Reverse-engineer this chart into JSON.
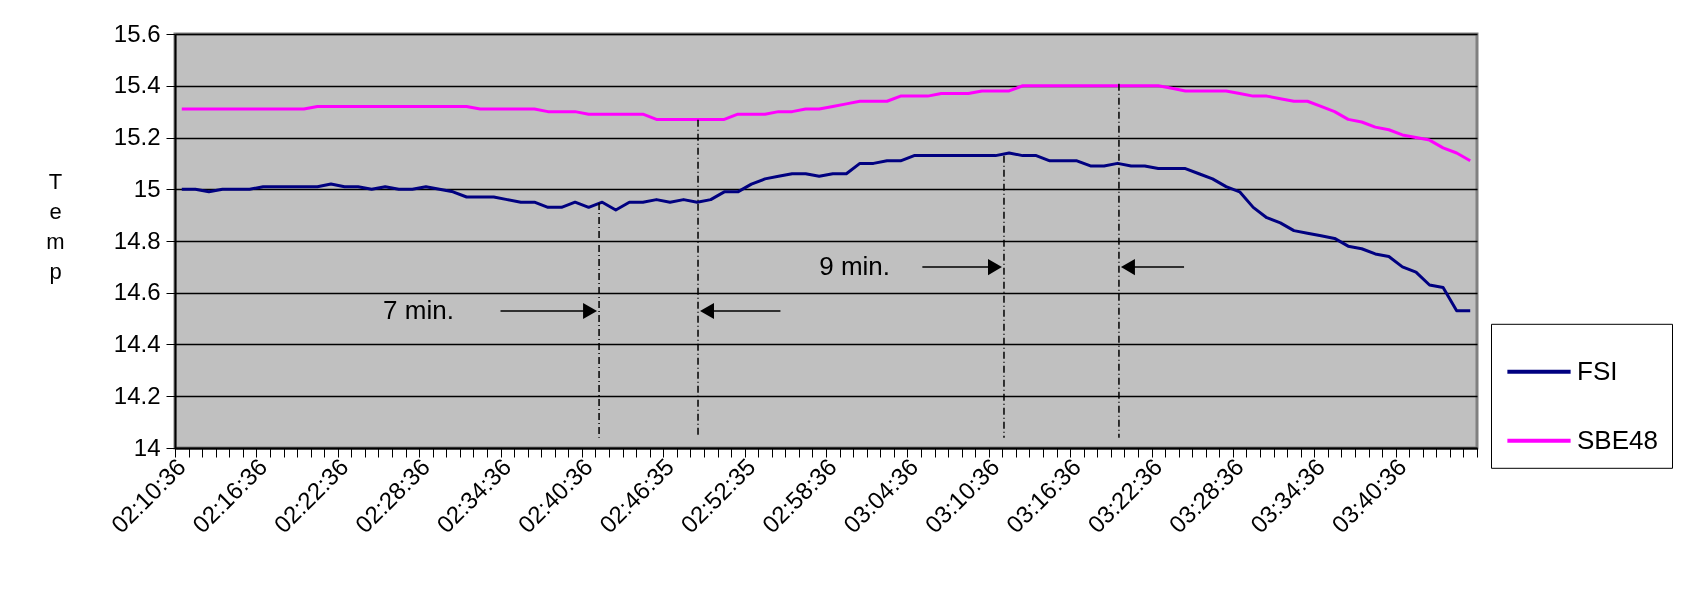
{
  "chart_data": {
    "type": "line",
    "ylabel": "Temp",
    "categories": [
      "02:10:36",
      null,
      null,
      null,
      null,
      null,
      "02:16:36",
      null,
      null,
      null,
      null,
      null,
      "02:22:36",
      null,
      null,
      null,
      null,
      null,
      "02:28:36",
      null,
      null,
      null,
      null,
      null,
      "02:34:36",
      null,
      null,
      null,
      null,
      null,
      "02:40:36",
      null,
      null,
      null,
      null,
      null,
      "02:46:35",
      null,
      null,
      null,
      null,
      null,
      "02:52:35",
      null,
      null,
      null,
      null,
      null,
      "02:58:36",
      null,
      null,
      null,
      null,
      null,
      "03:04:36",
      null,
      null,
      null,
      null,
      null,
      "03:10:36",
      null,
      null,
      null,
      null,
      null,
      "03:16:36",
      null,
      null,
      null,
      null,
      null,
      "03:22:36",
      null,
      null,
      null,
      null,
      null,
      "03:28:36",
      null,
      null,
      null,
      null,
      null,
      "03:34:36",
      null,
      null,
      null,
      null,
      null,
      "03:40:36",
      null,
      null,
      null,
      null,
      null
    ],
    "series": [
      {
        "name": "FSI",
        "color": "#000080",
        "values": [
          15.0,
          15.0,
          14.99,
          15.0,
          15.0,
          15.0,
          15.01,
          15.01,
          15.01,
          15.01,
          15.01,
          15.02,
          15.01,
          15.01,
          15.0,
          15.01,
          15.0,
          15.0,
          15.01,
          15.0,
          14.99,
          14.97,
          14.97,
          14.97,
          14.96,
          14.95,
          14.95,
          14.93,
          14.93,
          14.95,
          14.93,
          14.95,
          14.92,
          14.95,
          14.95,
          14.96,
          14.95,
          14.96,
          14.95,
          14.96,
          14.99,
          14.99,
          15.02,
          15.04,
          15.05,
          15.06,
          15.06,
          15.05,
          15.06,
          15.06,
          15.1,
          15.1,
          15.11,
          15.11,
          15.13,
          15.13,
          15.13,
          15.13,
          15.13,
          15.13,
          15.13,
          15.14,
          15.13,
          15.13,
          15.11,
          15.11,
          15.11,
          15.09,
          15.09,
          15.1,
          15.09,
          15.09,
          15.08,
          15.08,
          15.08,
          15.06,
          15.04,
          15.01,
          14.99,
          14.93,
          14.89,
          14.87,
          14.84,
          14.83,
          14.82,
          14.81,
          14.78,
          14.77,
          14.75,
          14.74,
          14.7,
          14.68,
          14.63,
          14.62,
          14.53,
          14.53
        ]
      },
      {
        "name": "SBE48",
        "color": "#ff00ff",
        "values": [
          15.31,
          15.31,
          15.31,
          15.31,
          15.31,
          15.31,
          15.31,
          15.31,
          15.31,
          15.31,
          15.32,
          15.32,
          15.32,
          15.32,
          15.32,
          15.32,
          15.32,
          15.32,
          15.32,
          15.32,
          15.32,
          15.32,
          15.31,
          15.31,
          15.31,
          15.31,
          15.31,
          15.3,
          15.3,
          15.3,
          15.29,
          15.29,
          15.29,
          15.29,
          15.29,
          15.27,
          15.27,
          15.27,
          15.27,
          15.27,
          15.27,
          15.29,
          15.29,
          15.29,
          15.3,
          15.3,
          15.31,
          15.31,
          15.32,
          15.33,
          15.34,
          15.34,
          15.34,
          15.36,
          15.36,
          15.36,
          15.37,
          15.37,
          15.37,
          15.38,
          15.38,
          15.38,
          15.4,
          15.4,
          15.4,
          15.4,
          15.4,
          15.4,
          15.4,
          15.4,
          15.4,
          15.4,
          15.4,
          15.39,
          15.38,
          15.38,
          15.38,
          15.38,
          15.37,
          15.36,
          15.36,
          15.35,
          15.34,
          15.34,
          15.32,
          15.3,
          15.27,
          15.26,
          15.24,
          15.23,
          15.21,
          15.2,
          15.19,
          15.16,
          15.14,
          15.11
        ]
      }
    ],
    "ylim": [
      14,
      15.6
    ],
    "yticks": [
      14,
      14.2,
      14.4,
      14.6,
      14.8,
      15,
      15.2,
      15.4,
      15.6
    ],
    "grid": "y",
    "legend": "right",
    "line_style": "solid",
    "marker": "none",
    "annotations": [
      "7 min.",
      "9 min."
    ]
  }
}
